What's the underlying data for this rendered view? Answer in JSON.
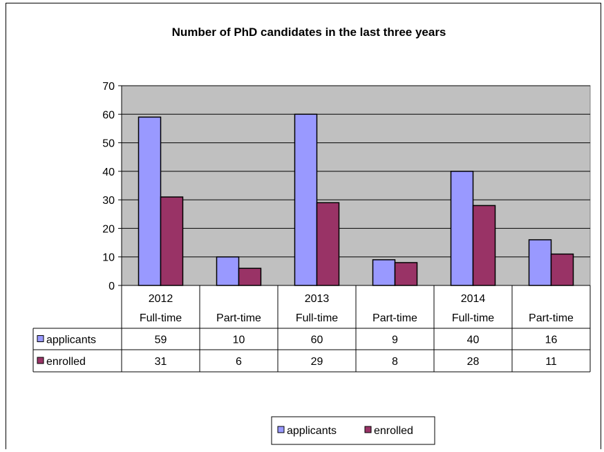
{
  "chart_data": {
    "type": "bar",
    "title": "Number of PhD candidates in the last three years",
    "ylim": [
      0,
      70
    ],
    "yticks": [
      "0",
      "10",
      "20",
      "30",
      "40",
      "50",
      "60",
      "70"
    ],
    "categories": [
      {
        "year": "2012",
        "mode": "Full-time"
      },
      {
        "year": "",
        "mode": "Part-time"
      },
      {
        "year": "2013",
        "mode": "Full-time"
      },
      {
        "year": "",
        "mode": "Part-time"
      },
      {
        "year": "2014",
        "mode": "Full-time"
      },
      {
        "year": "",
        "mode": "Part-time"
      }
    ],
    "series": [
      {
        "name": "applicants",
        "color": "#9999FF",
        "values": [
          59,
          10,
          60,
          9,
          40,
          16
        ]
      },
      {
        "name": "enrolled",
        "color": "#993366",
        "values": [
          31,
          6,
          29,
          8,
          28,
          11
        ]
      }
    ],
    "grid": true,
    "plot_background": "#C0C0C0",
    "legend_position": "bottom"
  }
}
